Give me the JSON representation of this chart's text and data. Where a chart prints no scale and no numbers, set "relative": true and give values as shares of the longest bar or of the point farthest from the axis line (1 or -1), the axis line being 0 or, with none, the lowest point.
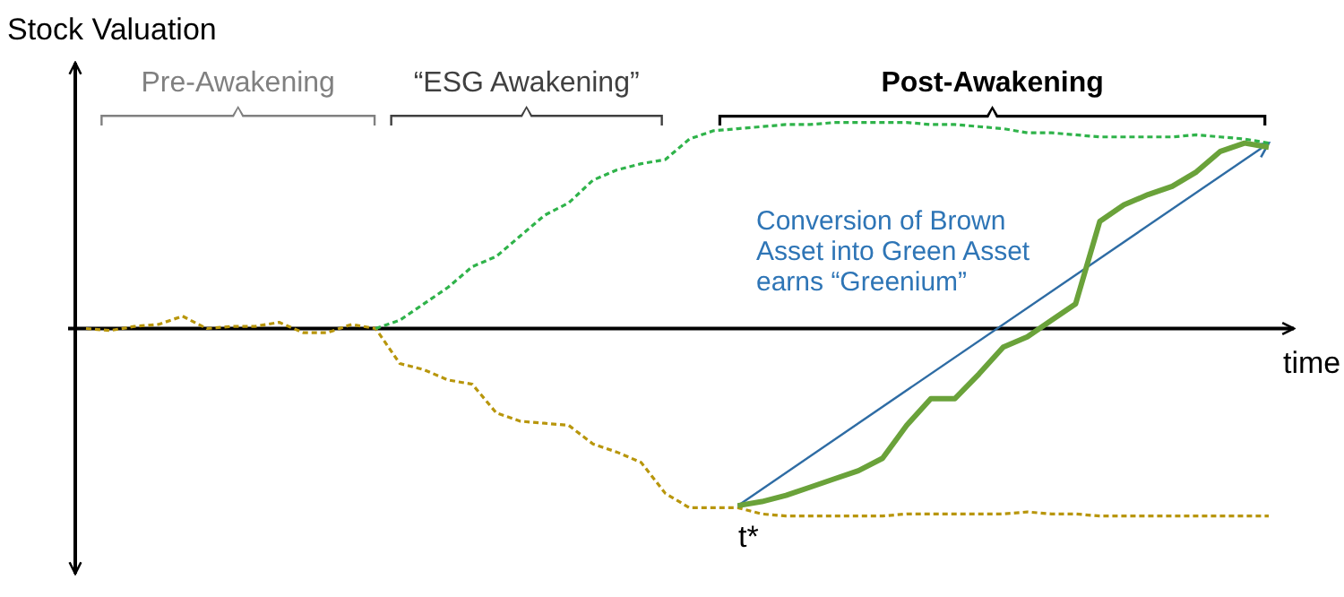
{
  "chart_data": {
    "type": "line",
    "relative": true,
    "ylabel": "Stock Valuation",
    "xlabel": "time",
    "categories": [
      null,
      null,
      null,
      null,
      null,
      null,
      null,
      null,
      null,
      null,
      null,
      null,
      null,
      null,
      null,
      null,
      null,
      null,
      null,
      null,
      null,
      null,
      null,
      null,
      null,
      null,
      null,
      null,
      null,
      null,
      null,
      null,
      null,
      null,
      null,
      null,
      null,
      null,
      null,
      null,
      null,
      null,
      null,
      null,
      null,
      null,
      null,
      null,
      null,
      null
    ],
    "series": [
      {
        "color": "#b8960c",
        "line_style": "dashed",
        "values": [
          0,
          -0.01,
          0.01,
          0.02,
          0.06,
          0,
          0.01,
          0.01,
          0.03,
          -0.02,
          -0.02,
          0.02,
          0,
          -0.17,
          -0.2,
          -0.25,
          -0.27,
          -0.41,
          -0.45,
          -0.46,
          -0.47,
          -0.56,
          -0.6,
          -0.65,
          -0.8,
          -0.87,
          -0.87,
          -0.87,
          -0.9,
          -0.91,
          -0.91,
          -0.91,
          -0.91,
          -0.91,
          -0.9,
          -0.9,
          -0.9,
          -0.9,
          -0.9,
          -0.89,
          -0.9,
          -0.9,
          -0.91,
          -0.91,
          -0.91,
          -0.91,
          -0.91,
          -0.91,
          -0.91,
          -0.91
        ]
      },
      {
        "color": "#2fb34a",
        "line_style": "dashed",
        "values": [
          null,
          null,
          null,
          null,
          null,
          null,
          null,
          null,
          null,
          null,
          null,
          null,
          0,
          0.04,
          0.12,
          0.2,
          0.3,
          0.35,
          0.45,
          0.55,
          0.61,
          0.72,
          0.77,
          0.8,
          0.82,
          0.92,
          0.96,
          0.97,
          0.98,
          0.99,
          0.99,
          1,
          1,
          1,
          1,
          0.99,
          0.99,
          0.98,
          0.97,
          0.95,
          0.95,
          0.94,
          0.93,
          0.93,
          0.93,
          0.93,
          0.94,
          0.93,
          0.92,
          0.9
        ]
      },
      {
        "color": "#6aa23a",
        "line_style": "solid",
        "values": [
          null,
          null,
          null,
          null,
          null,
          null,
          null,
          null,
          null,
          null,
          null,
          null,
          null,
          null,
          null,
          null,
          null,
          null,
          null,
          null,
          null,
          null,
          null,
          null,
          null,
          null,
          null,
          -0.86,
          -0.84,
          -0.81,
          -0.77,
          -0.73,
          -0.69,
          -0.63,
          -0.47,
          -0.34,
          -0.34,
          -0.22,
          -0.09,
          -0.04,
          0.04,
          0.12,
          0.52,
          0.6,
          0.65,
          0.69,
          0.76,
          0.86,
          0.9,
          0.88
        ]
      }
    ],
    "annotations": [
      "Pre-Awakening",
      "“ESG Awakening”",
      "Post-Awakening",
      "Conversion of Brown Asset into Green Asset earns “Greenium”",
      "t*"
    ]
  }
}
